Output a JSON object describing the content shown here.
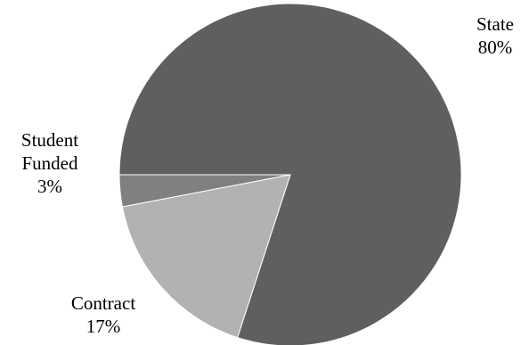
{
  "chart_data": {
    "type": "pie",
    "start_angle": "9 o'clock",
    "direction": "clockwise",
    "slices": [
      {
        "label": "State",
        "value": 80,
        "display": "80%",
        "color": "#5f5f5f"
      },
      {
        "label": "Contract",
        "value": 17,
        "display": "17%",
        "color": "#b2b2b2"
      },
      {
        "label": "Student Funded",
        "value": 3,
        "display": "3%",
        "color": "#808080"
      }
    ],
    "label_lines": [
      [
        "State"
      ],
      [
        "Contract"
      ],
      [
        "Student",
        "Funded"
      ]
    ]
  }
}
